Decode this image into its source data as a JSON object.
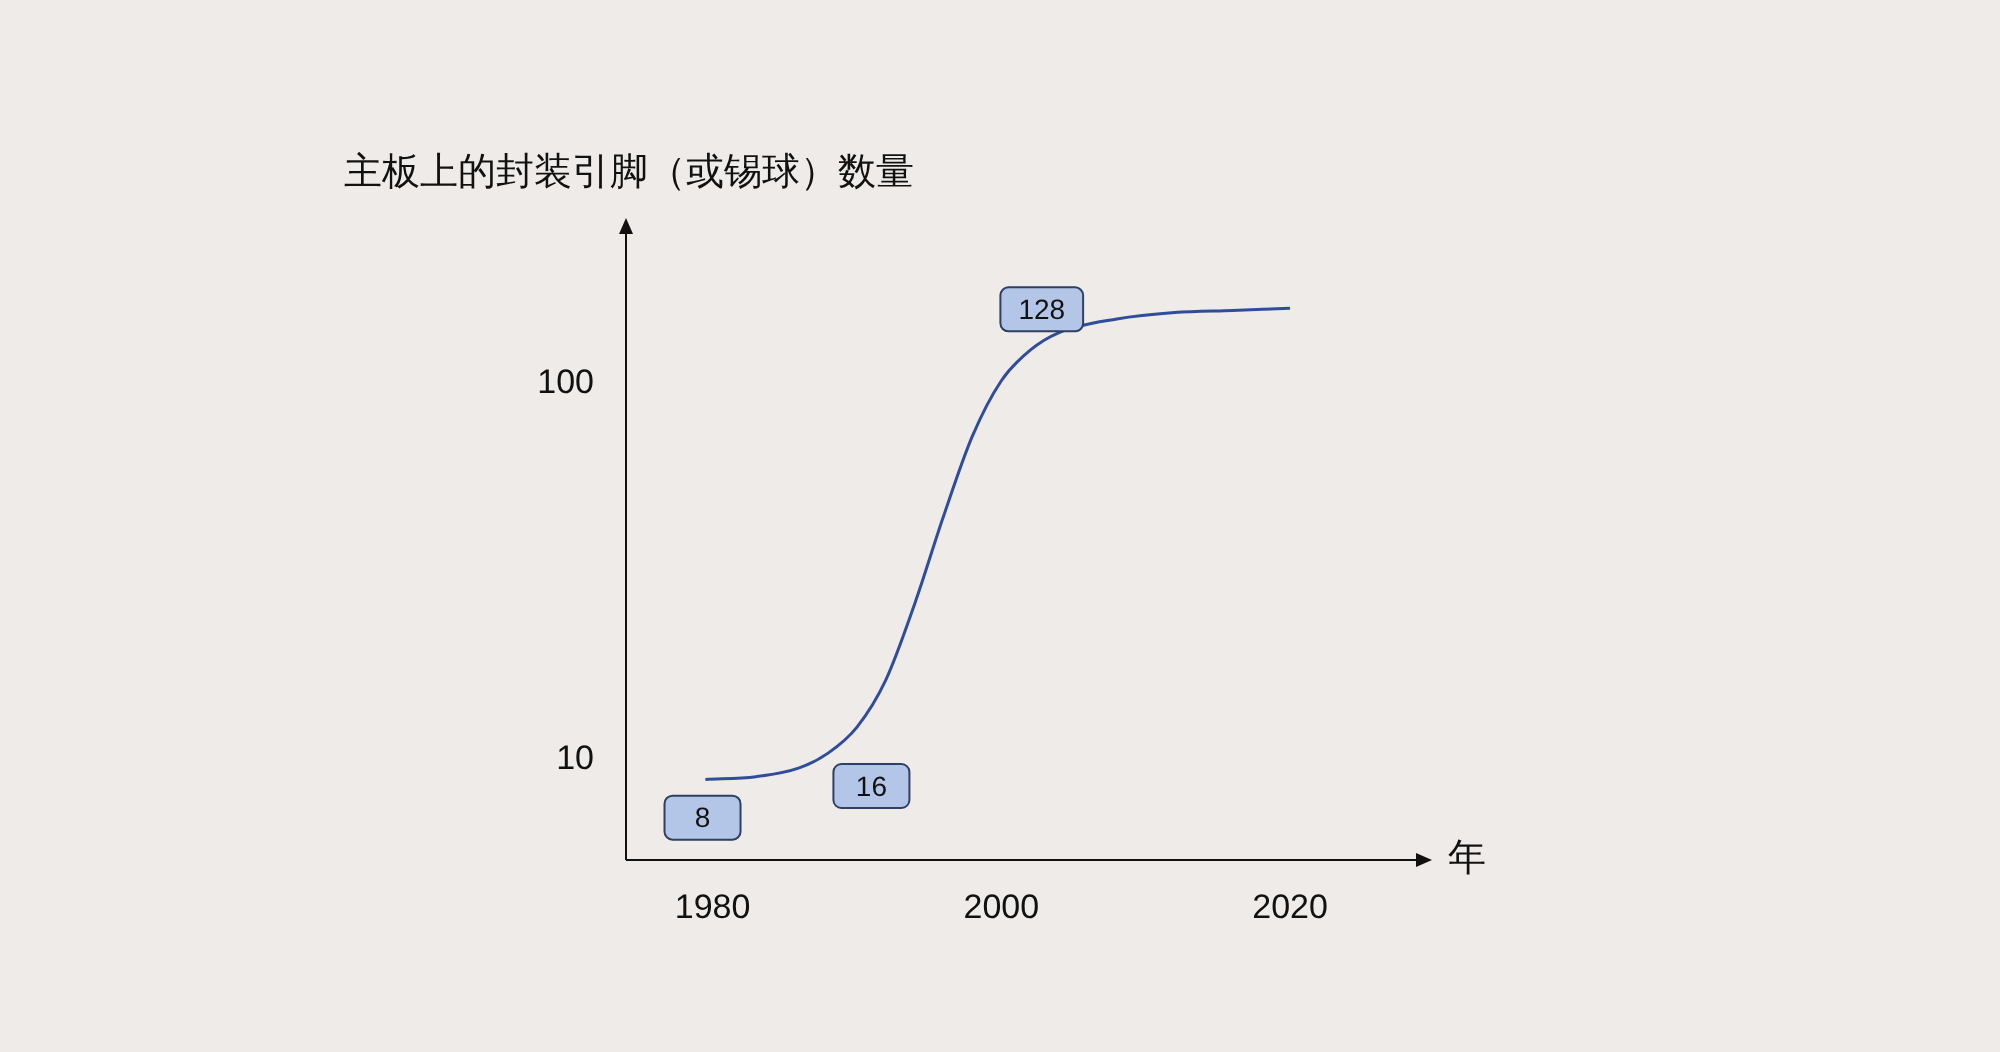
{
  "chart_data": {
    "type": "line",
    "xlabel": "年",
    "ylabel": "主板上的封装引脚（或锡球）数量",
    "log": "y",
    "grid": false,
    "legend": false,
    "marker": "none",
    "line_style": "solid",
    "x": [
      1979.5,
      1983,
      1986,
      1988,
      1990,
      1992,
      1994,
      1996,
      1998,
      2000,
      2002,
      2004,
      2008,
      2012,
      2016,
      2020
    ],
    "series": [
      {
        "color": "#2f4d9a",
        "values": [
          8.85,
          9.0,
          9.5,
          10.4,
          12.2,
          16.3,
          26,
          44.5,
          72.7,
          102,
          123,
          137,
          149,
          155,
          157,
          159
        ]
      }
    ],
    "xlim": [
      1974,
      2029
    ],
    "xticks": [
      1980,
      2000,
      2020
    ],
    "ylim": [
      5.4,
      257
    ],
    "yticks": [
      10,
      100
    ],
    "annotations": [
      {
        "text": "8",
        "x": 1979.3,
        "y": 7
      },
      {
        "text": "16",
        "x": 1991,
        "y": 8.5
      },
      {
        "text": "128",
        "x": 2002.8,
        "y": 158
      }
    ]
  }
}
